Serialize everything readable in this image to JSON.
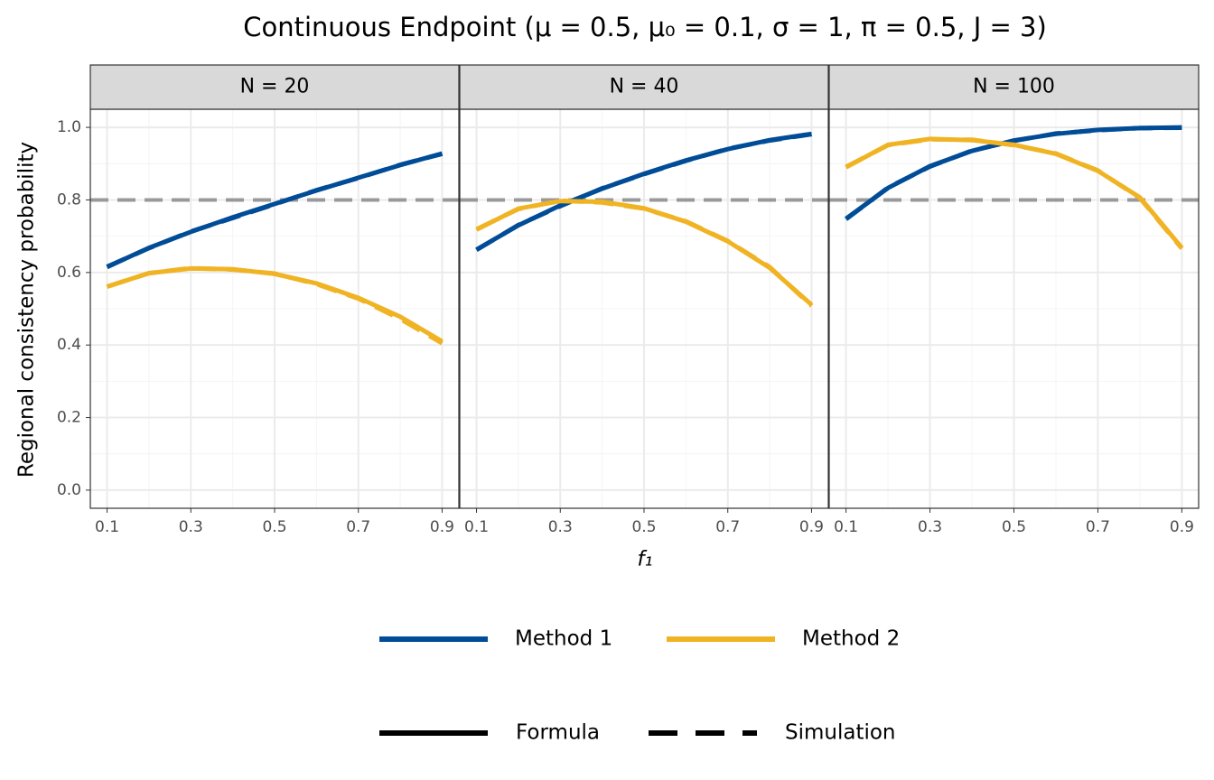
{
  "chart_data": {
    "type": "line",
    "title": "Continuous Endpoint  (μ = 0.5, μ₀ = 0.1, σ = 1, π = 0.5, J = 3)",
    "x_label": "f₁",
    "y_label": "Regional consistency probability",
    "x": [
      0.1,
      0.2,
      0.3,
      0.4,
      0.5,
      0.6,
      0.7,
      0.8,
      0.9
    ],
    "xlim": [
      0.06,
      0.94
    ],
    "xticks": [
      0.1,
      0.3,
      0.5,
      0.7,
      0.9
    ],
    "x_minor_grid": [
      0.2,
      0.4,
      0.6,
      0.8
    ],
    "ylim": [
      -0.05,
      1.05
    ],
    "yticks": [
      {
        "value": 0,
        "label": "0.0"
      },
      0.2,
      0.4,
      0.6,
      0.8,
      {
        "value": 1,
        "label": "1.0"
      }
    ],
    "y_minor_grid": [
      0.1,
      0.3,
      0.5,
      0.7,
      0.9
    ],
    "grid": true,
    "reference_line": 0.8,
    "color_legend": [
      {
        "name": "Method 1",
        "color": "#004c97"
      },
      {
        "name": "Method 2",
        "color": "#f0b323"
      }
    ],
    "linetype_legend": [
      {
        "name": "Formula",
        "dash": "solid"
      },
      {
        "name": "Simulation",
        "dash": "dashed"
      }
    ],
    "legend_position": "bottom",
    "facets": [
      {
        "label": "N = 20",
        "series": [
          {
            "name": "Method 1",
            "linetype": "Formula",
            "values": [
              0.615,
              0.668,
              0.712,
              0.752,
              0.789,
              0.826,
              0.861,
              0.896,
              0.928
            ]
          },
          {
            "name": "Method 1",
            "linetype": "Simulation",
            "values": [
              0.616,
              0.667,
              0.713,
              0.75,
              0.788,
              0.827,
              0.86,
              0.897,
              0.927
            ]
          },
          {
            "name": "Method 2",
            "linetype": "Formula",
            "values": [
              0.561,
              0.598,
              0.611,
              0.609,
              0.596,
              0.57,
              0.53,
              0.478,
              0.41
            ]
          },
          {
            "name": "Method 2",
            "linetype": "Simulation",
            "values": [
              0.561,
              0.598,
              0.612,
              0.608,
              0.597,
              0.568,
              0.528,
              0.472,
              0.405
            ]
          }
        ]
      },
      {
        "label": "N = 40",
        "series": [
          {
            "name": "Method 1",
            "linetype": "Formula",
            "values": [
              0.663,
              0.73,
              0.785,
              0.831,
              0.872,
              0.909,
              0.94,
              0.965,
              0.982
            ]
          },
          {
            "name": "Method 1",
            "linetype": "Simulation",
            "values": [
              0.662,
              0.731,
              0.783,
              0.832,
              0.871,
              0.908,
              0.941,
              0.964,
              0.981
            ]
          },
          {
            "name": "Method 2",
            "linetype": "Formula",
            "values": [
              0.718,
              0.776,
              0.797,
              0.795,
              0.777,
              0.74,
              0.686,
              0.613,
              0.511
            ]
          },
          {
            "name": "Method 2",
            "linetype": "Simulation",
            "values": [
              0.719,
              0.775,
              0.798,
              0.793,
              0.776,
              0.741,
              0.687,
              0.615,
              0.508
            ]
          }
        ]
      },
      {
        "label": "N = 100",
        "series": [
          {
            "name": "Method 1",
            "linetype": "Formula",
            "values": [
              0.748,
              0.833,
              0.893,
              0.935,
              0.964,
              0.982,
              0.993,
              0.998,
              1.0
            ]
          },
          {
            "name": "Method 1",
            "linetype": "Simulation",
            "values": [
              0.747,
              0.834,
              0.892,
              0.936,
              0.963,
              0.983,
              0.992,
              0.998,
              0.999
            ]
          },
          {
            "name": "Method 2",
            "linetype": "Formula",
            "values": [
              0.89,
              0.952,
              0.968,
              0.965,
              0.952,
              0.927,
              0.88,
              0.807,
              0.668
            ]
          },
          {
            "name": "Method 2",
            "linetype": "Simulation",
            "values": [
              0.891,
              0.951,
              0.967,
              0.966,
              0.951,
              0.928,
              0.881,
              0.805,
              0.666
            ]
          }
        ]
      }
    ]
  }
}
